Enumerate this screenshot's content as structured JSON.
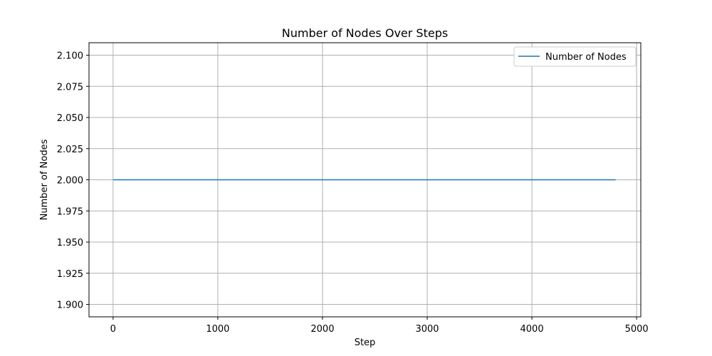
{
  "chart_data": {
    "type": "line",
    "title": "Number of Nodes Over Steps",
    "xlabel": "Step",
    "ylabel": "Number of Nodes",
    "xlim": [
      -230,
      5040
    ],
    "ylim": [
      1.89,
      2.11
    ],
    "x_ticks": [
      0,
      1000,
      2000,
      3000,
      4000,
      5000
    ],
    "y_ticks": [
      1.9,
      1.925,
      1.95,
      1.975,
      2.0,
      2.025,
      2.05,
      2.075,
      2.1
    ],
    "x_tick_labels": [
      "0",
      "1000",
      "2000",
      "3000",
      "4000",
      "5000"
    ],
    "y_tick_labels": [
      "1.900",
      "1.925",
      "1.950",
      "1.975",
      "2.000",
      "2.025",
      "2.050",
      "2.075",
      "2.100"
    ],
    "grid": true,
    "legend_position": "top-right",
    "series": [
      {
        "name": "Number of Nodes",
        "color": "#1f77b4",
        "x": [
          0,
          4800
        ],
        "y": [
          2.0,
          2.0
        ]
      }
    ]
  }
}
